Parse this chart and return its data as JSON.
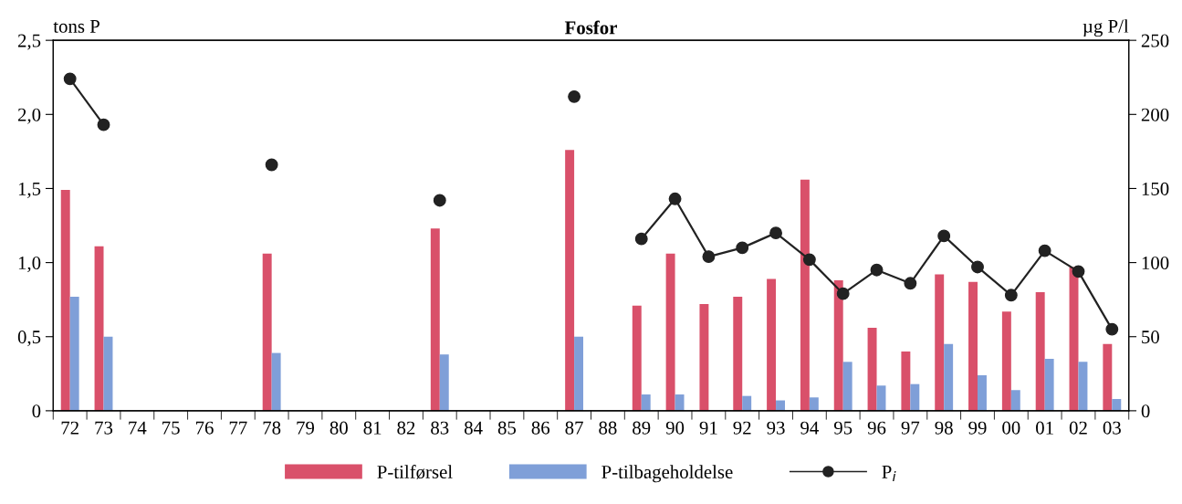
{
  "chart_data": {
    "type": "bar",
    "title": "Fosfor",
    "ylabel": "tons P",
    "y2label": "µg P/l",
    "categories": [
      "72",
      "73",
      "74",
      "75",
      "76",
      "77",
      "78",
      "79",
      "80",
      "81",
      "82",
      "83",
      "84",
      "85",
      "86",
      "87",
      "88",
      "89",
      "90",
      "91",
      "92",
      "93",
      "94",
      "95",
      "96",
      "97",
      "98",
      "99",
      "00",
      "01",
      "02",
      "03"
    ],
    "series": [
      {
        "name": "P-tilførsel",
        "color": "#d9506a",
        "values": [
          1.49,
          1.11,
          null,
          null,
          null,
          null,
          1.06,
          null,
          null,
          null,
          null,
          1.23,
          null,
          null,
          null,
          1.76,
          null,
          0.71,
          1.06,
          0.72,
          0.77,
          0.89,
          1.56,
          0.88,
          0.56,
          0.4,
          0.92,
          0.87,
          0.67,
          0.8,
          0.97,
          0.45
        ]
      },
      {
        "name": "P-tilbageholdelse",
        "color": "#7f9fd8",
        "values": [
          0.77,
          0.5,
          null,
          null,
          null,
          null,
          0.39,
          null,
          null,
          null,
          null,
          0.38,
          null,
          null,
          null,
          0.5,
          null,
          0.11,
          0.11,
          null,
          0.1,
          0.07,
          0.09,
          0.33,
          0.17,
          0.18,
          0.45,
          0.24,
          0.14,
          0.35,
          0.33,
          0.08
        ]
      },
      {
        "name": "P$_{i}$",
        "type": "line",
        "axis": "y2",
        "color": "#222222",
        "marker": "circle",
        "values": [
          224,
          193,
          null,
          null,
          null,
          null,
          166,
          null,
          null,
          null,
          null,
          142,
          null,
          null,
          null,
          212,
          null,
          116,
          143,
          104,
          110,
          120,
          102,
          79,
          95,
          86,
          118,
          97,
          78,
          108,
          94,
          55
        ]
      }
    ],
    "ylim": [
      0,
      2.5
    ],
    "yticks": [
      0,
      {
        "value": 0.5,
        "label": "0,5"
      },
      {
        "value": 1.0,
        "label": "1,0"
      },
      {
        "value": 1.5,
        "label": "1,5"
      },
      {
        "value": 2.0,
        "label": "2,0"
      },
      {
        "value": 2.5,
        "label": "2,5"
      }
    ],
    "y2lim": [
      0,
      250
    ],
    "y2ticks": [
      0,
      50,
      100,
      150,
      200,
      250
    ],
    "grid": false,
    "legend": "bottom"
  }
}
